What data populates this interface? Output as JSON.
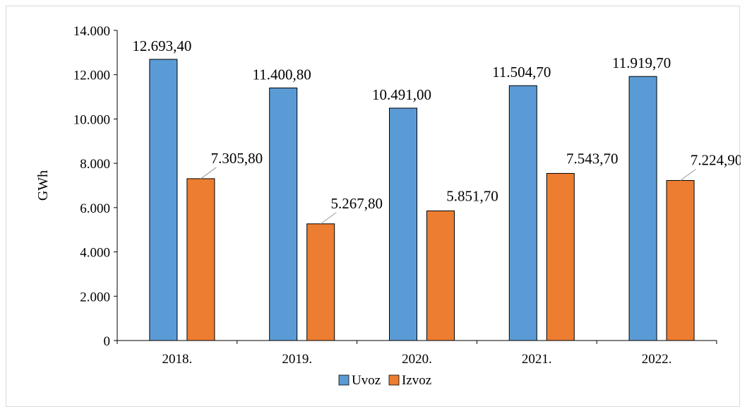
{
  "chart_data": {
    "type": "bar",
    "title": "",
    "xlabel": "",
    "ylabel": "GWh",
    "categories": [
      "2018.",
      "2019.",
      "2020.",
      "2021.",
      "2022."
    ],
    "series": [
      {
        "name": "Uvoz",
        "color": "#5b9bd5",
        "values": [
          12693.4,
          11400.8,
          10491.0,
          11504.7,
          11919.7
        ],
        "labels": [
          "12.693,40",
          "11.400,80",
          "10.491,00",
          "11.504,70",
          "11.919,70"
        ]
      },
      {
        "name": "Izvoz",
        "color": "#ed7d31",
        "values": [
          7305.8,
          5267.8,
          5851.7,
          7543.7,
          7224.9
        ],
        "labels": [
          "7.305,80",
          "5.267,80",
          "5.851,70",
          "7.543,70",
          "7.224,90"
        ]
      }
    ],
    "ylim": [
      0,
      14000
    ],
    "yticks": [
      0,
      2000,
      4000,
      6000,
      8000,
      10000,
      12000,
      14000
    ],
    "ytick_labels": [
      "0",
      "2.000",
      "4.000",
      "6.000",
      "8.000",
      "10.000",
      "12.000",
      "14.000"
    ],
    "grid": false,
    "legend": "bottom-center"
  }
}
